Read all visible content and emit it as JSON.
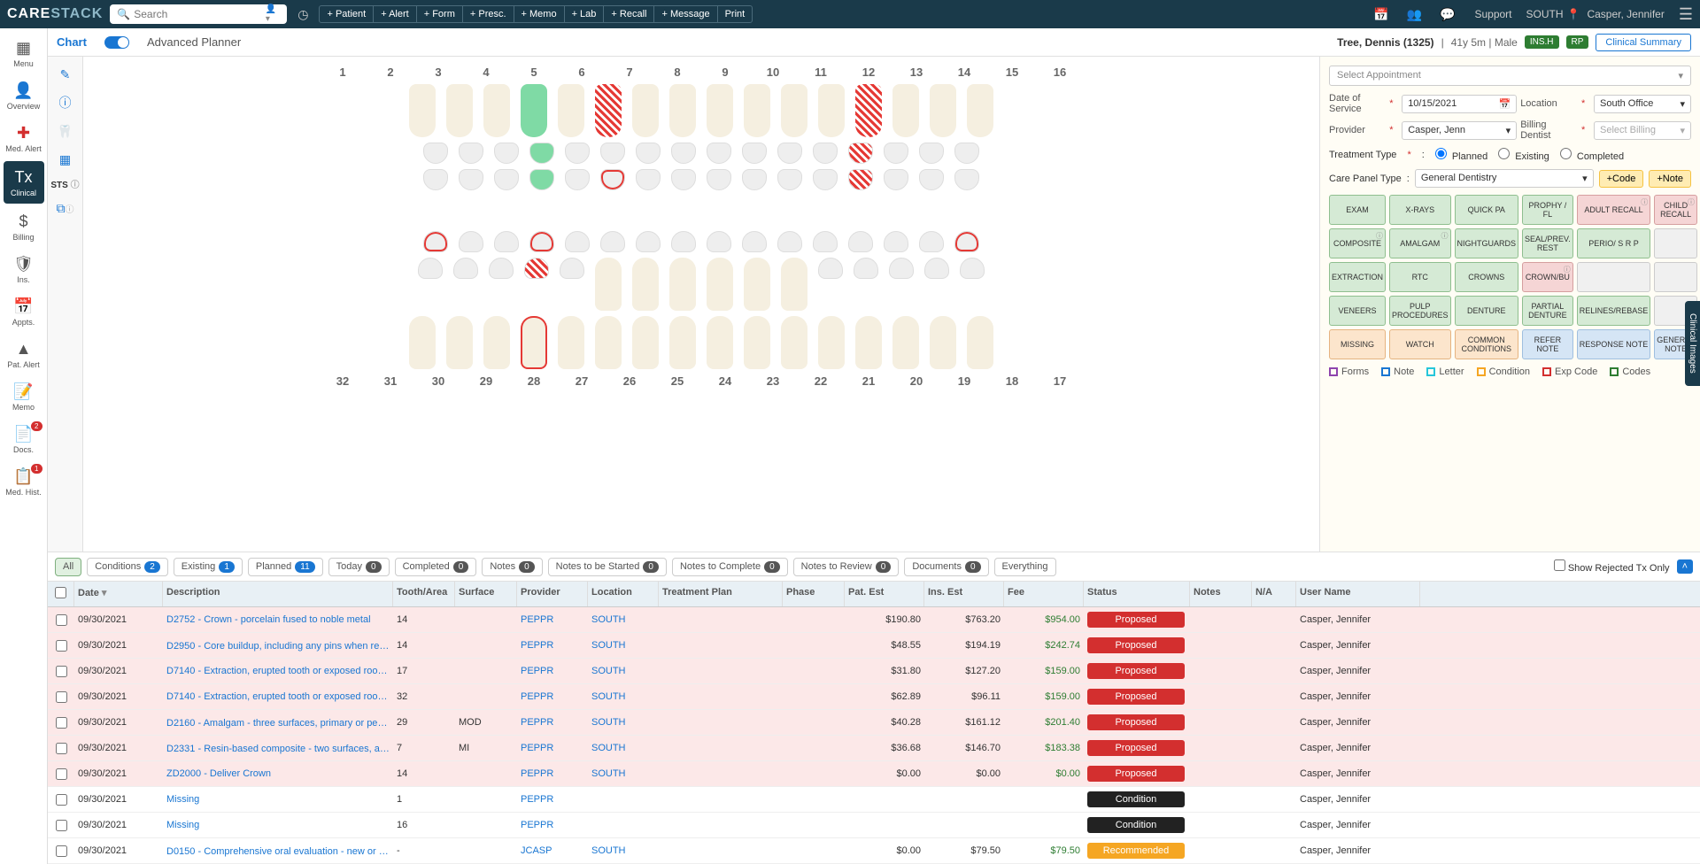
{
  "logo": {
    "part1": "CARE",
    "part2": "STACK"
  },
  "search": {
    "placeholder": "Search"
  },
  "quickButtons": [
    "+ Patient",
    "+ Alert",
    "+ Form",
    "+ Presc.",
    "+ Memo",
    "+ Lab",
    "+ Recall",
    "+ Message",
    "Print"
  ],
  "support": "Support",
  "location": "SOUTH",
  "user": "Casper, Jennifer",
  "leftNav": [
    {
      "icon": "▦",
      "label": "Menu"
    },
    {
      "icon": "👤",
      "label": "Overview"
    },
    {
      "icon": "✚",
      "label": "Med. Alert",
      "red": true
    },
    {
      "icon": "Tx",
      "label": "Clinical",
      "active": true
    },
    {
      "icon": "$",
      "label": "Billing"
    },
    {
      "icon": "🛡",
      "label": "Ins."
    },
    {
      "icon": "📅",
      "label": "Appts."
    },
    {
      "icon": "▲",
      "label": "Pat. Alert"
    },
    {
      "icon": "📝",
      "label": "Memo"
    },
    {
      "icon": "📄",
      "label": "Docs.",
      "badge": "2",
      "red": true
    },
    {
      "icon": "📋",
      "label": "Med. Hist.",
      "badge": "1",
      "red": true
    }
  ],
  "chartTabs": {
    "chart": "Chart",
    "planner": "Advanced Planner"
  },
  "patient": {
    "name": "Tree, Dennis (1325)",
    "meta": "41y 5m | Male",
    "ins": "INS.H",
    "rp": "RP"
  },
  "clinSum": "Clinical Summary",
  "toothTop": [
    "1",
    "2",
    "3",
    "4",
    "5",
    "6",
    "7",
    "8",
    "9",
    "10",
    "11",
    "12",
    "13",
    "14",
    "15",
    "16"
  ],
  "toothBottom": [
    "32",
    "31",
    "30",
    "29",
    "28",
    "27",
    "26",
    "25",
    "24",
    "23",
    "22",
    "21",
    "20",
    "19",
    "18",
    "17"
  ],
  "rightPanel": {
    "selectAppt": "Select Appointment",
    "fields": {
      "dosLabel": "Date of Service",
      "dos": "10/15/2021",
      "locLabel": "Location",
      "loc": "South Office",
      "provLabel": "Provider",
      "prov": "Casper, Jenn",
      "billLabel": "Billing Dentist",
      "bill": "Select Billing"
    },
    "ttLabel": "Treatment Type",
    "tt": [
      "Planned",
      "Existing",
      "Completed"
    ],
    "cpLabel": "Care Panel Type",
    "cp": "General Dentistry",
    "addCode": "+Code",
    "addNote": "+Note",
    "codes": [
      {
        "t": "EXAM",
        "c": "green"
      },
      {
        "t": "X-RAYS",
        "c": "green"
      },
      {
        "t": "QUICK PA",
        "c": "green"
      },
      {
        "t": "PROPHY / FL",
        "c": "green"
      },
      {
        "t": "ADULT RECALL",
        "c": "pink",
        "i": true
      },
      {
        "t": "CHILD RECALL",
        "c": "pink",
        "i": true
      },
      {
        "t": "COMPOSITE",
        "c": "green",
        "i": true
      },
      {
        "t": "AMALGAM",
        "c": "green",
        "i": true
      },
      {
        "t": "NIGHTGUARDS",
        "c": "green"
      },
      {
        "t": "SEAL/PREV. REST",
        "c": "green"
      },
      {
        "t": "PERIO/ S R P",
        "c": "green"
      },
      {
        "t": "",
        "c": "grey"
      },
      {
        "t": "EXTRACTION",
        "c": "green"
      },
      {
        "t": "RTC",
        "c": "green"
      },
      {
        "t": "CROWNS",
        "c": "green"
      },
      {
        "t": "CROWN/BU",
        "c": "pink",
        "i": true
      },
      {
        "t": "",
        "c": "grey"
      },
      {
        "t": "",
        "c": "grey"
      },
      {
        "t": "VENEERS",
        "c": "green"
      },
      {
        "t": "PULP PROCEDURES",
        "c": "green"
      },
      {
        "t": "DENTURE",
        "c": "green"
      },
      {
        "t": "PARTIAL DENTURE",
        "c": "green"
      },
      {
        "t": "RELINES/REBASE",
        "c": "green"
      },
      {
        "t": "",
        "c": "grey"
      },
      {
        "t": "MISSING",
        "c": "orange"
      },
      {
        "t": "WATCH",
        "c": "orange"
      },
      {
        "t": "COMMON CONDITIONS",
        "c": "orange"
      },
      {
        "t": "REFER NOTE",
        "c": "blue"
      },
      {
        "t": "RESPONSE NOTE",
        "c": "blue"
      },
      {
        "t": "GENERAL NOTE",
        "c": "blue"
      }
    ],
    "legend": [
      {
        "t": "Forms",
        "c": "#8e44ad"
      },
      {
        "t": "Note",
        "c": "#1976d2"
      },
      {
        "t": "Letter",
        "c": "#26c6da"
      },
      {
        "t": "Condition",
        "c": "#f5a623"
      },
      {
        "t": "Exp Code",
        "c": "#d32f2f"
      },
      {
        "t": "Codes",
        "c": "#2e7d32"
      }
    ]
  },
  "filters": [
    {
      "t": "All",
      "active": true
    },
    {
      "t": "Conditions",
      "n": "2",
      "nblue": true
    },
    {
      "t": "Existing",
      "n": "1",
      "nblue": true
    },
    {
      "t": "Planned",
      "n": "11",
      "nblue": true
    },
    {
      "t": "Today",
      "n": "0"
    },
    {
      "t": "Completed",
      "n": "0"
    },
    {
      "t": "Notes",
      "n": "0"
    },
    {
      "t": "Notes to be Started",
      "n": "0"
    },
    {
      "t": "Notes to Complete",
      "n": "0"
    },
    {
      "t": "Notes to Review",
      "n": "0"
    },
    {
      "t": "Documents",
      "n": "0"
    },
    {
      "t": "Everything"
    }
  ],
  "showRejected": "Show Rejected Tx Only",
  "columns": [
    "",
    "Date",
    "Description",
    "Tooth/Area",
    "Surface",
    "Provider",
    "Location",
    "Treatment Plan",
    "Phase",
    "Pat. Est",
    "Ins. Est",
    "Fee",
    "Status",
    "Notes",
    "N/A",
    "User Name"
  ],
  "rows": [
    {
      "date": "09/30/2021",
      "desc": "D2752 - Crown - porcelain fused to noble metal",
      "tooth": "14",
      "surf": "",
      "prov": "PEPPR",
      "loc": "SOUTH",
      "pat": "$190.80",
      "ins": "$763.20",
      "fee": "$954.00",
      "status": "Proposed",
      "sc": "red",
      "user": "Casper, Jennifer",
      "pink": true
    },
    {
      "date": "09/30/2021",
      "desc": "D2950 - Core buildup, including any pins when req…",
      "info": true,
      "tooth": "14",
      "surf": "",
      "prov": "PEPPR",
      "loc": "SOUTH",
      "pat": "$48.55",
      "ins": "$194.19",
      "fee": "$242.74",
      "status": "Proposed",
      "sc": "red",
      "user": "Casper, Jennifer",
      "pink": true
    },
    {
      "date": "09/30/2021",
      "desc": "D7140 - Extraction, erupted tooth or exposed root (ele…",
      "tooth": "17",
      "surf": "",
      "prov": "PEPPR",
      "loc": "SOUTH",
      "pat": "$31.80",
      "ins": "$127.20",
      "fee": "$159.00",
      "status": "Proposed",
      "sc": "red",
      "user": "Casper, Jennifer",
      "pink": true
    },
    {
      "date": "09/30/2021",
      "desc": "D7140 - Extraction, erupted tooth or exposed root (ele…",
      "tooth": "32",
      "surf": "",
      "prov": "PEPPR",
      "loc": "SOUTH",
      "pat": "$62.89",
      "ins": "$96.11",
      "fee": "$159.00",
      "status": "Proposed",
      "sc": "red",
      "user": "Casper, Jennifer",
      "pink": true
    },
    {
      "date": "09/30/2021",
      "desc": "D2160 - Amalgam - three surfaces, primary or per…",
      "info": true,
      "tooth": "29",
      "surf": "MOD",
      "prov": "PEPPR",
      "loc": "SOUTH",
      "pat": "$40.28",
      "ins": "$161.12",
      "fee": "$201.40",
      "status": "Proposed",
      "sc": "red",
      "user": "Casper, Jennifer",
      "pink": true
    },
    {
      "date": "09/30/2021",
      "desc": "D2331 - Resin-based composite - two surfaces, an…",
      "info": true,
      "tooth": "7",
      "surf": "MI",
      "prov": "PEPPR",
      "loc": "SOUTH",
      "pat": "$36.68",
      "ins": "$146.70",
      "fee": "$183.38",
      "status": "Proposed",
      "sc": "red",
      "user": "Casper, Jennifer",
      "pink": true
    },
    {
      "date": "09/30/2021",
      "desc": "ZD2000 - Deliver Crown",
      "tooth": "14",
      "surf": "",
      "prov": "PEPPR",
      "loc": "SOUTH",
      "pat": "$0.00",
      "ins": "$0.00",
      "fee": "$0.00",
      "status": "Proposed",
      "sc": "red",
      "user": "Casper, Jennifer",
      "pink": true
    },
    {
      "date": "09/30/2021",
      "desc": "Missing",
      "tooth": "1",
      "surf": "",
      "prov": "PEPPR",
      "loc": "",
      "pat": "",
      "ins": "",
      "fee": "",
      "status": "Condition",
      "sc": "black",
      "user": "Casper, Jennifer"
    },
    {
      "date": "09/30/2021",
      "desc": "Missing",
      "tooth": "16",
      "surf": "",
      "prov": "PEPPR",
      "loc": "",
      "pat": "",
      "ins": "",
      "fee": "",
      "status": "Condition",
      "sc": "black",
      "user": "Casper, Jennifer"
    },
    {
      "date": "09/30/2021",
      "desc": "D0150 - Comprehensive oral evaluation - new or e…",
      "info": true,
      "tooth": "-",
      "surf": "",
      "prov": "JCASP",
      "loc": "SOUTH",
      "pat": "$0.00",
      "ins": "$79.50",
      "fee": "$79.50",
      "status": "Recommended",
      "sc": "green",
      "user": "Casper, Jennifer"
    }
  ],
  "edgeTab": "Clinical Images"
}
